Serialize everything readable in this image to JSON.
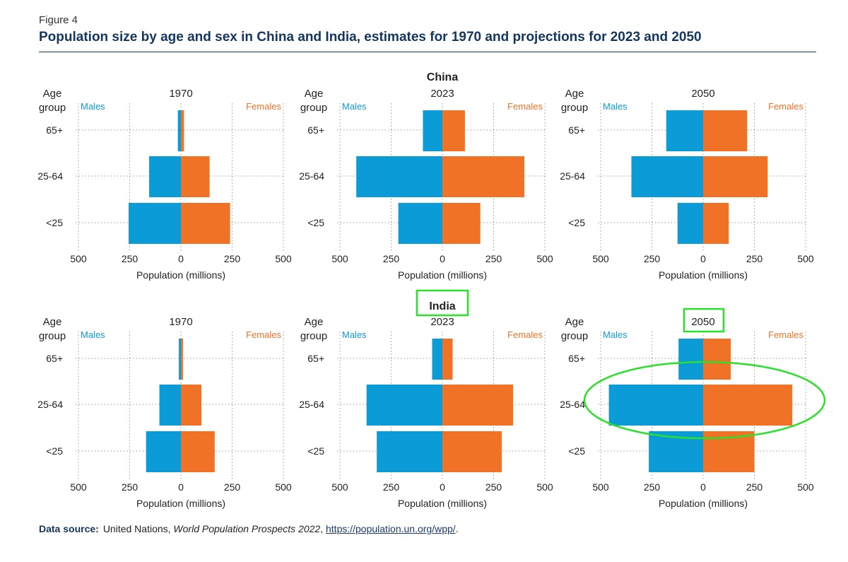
{
  "figure_label": "Figure 4",
  "title": "Population size by age and sex in China and India, estimates for 1970 and projections for 2023 and 2050",
  "colors": {
    "males": "#0b9bd7",
    "females": "#f07226",
    "title": "#14365d",
    "highlight": "#2be02b"
  },
  "source": {
    "label": "Data source:",
    "org": "United Nations, ",
    "publication": "World Population Prospects 2022",
    "separator": ", ",
    "link": "https://population.un.org/wpp/",
    "end": "."
  },
  "chart_data": [
    {
      "type": "bar",
      "country": "China",
      "year": "1970",
      "age_title": [
        "Age",
        "group"
      ],
      "categories": [
        "65+",
        "25-64",
        "<25"
      ],
      "males_label": "Males",
      "females_label": "Females",
      "series": [
        {
          "name": "Males",
          "values": [
            15,
            155,
            255
          ]
        },
        {
          "name": "Females",
          "values": [
            15,
            140,
            240
          ]
        }
      ],
      "xlabel": "Population (millions)",
      "xticks": [
        "500",
        "250",
        "0",
        "250",
        "500"
      ],
      "xlim": [
        -500,
        500
      ]
    },
    {
      "type": "bar",
      "country": "China",
      "year": "2023",
      "age_title": [
        "Age",
        "group"
      ],
      "categories": [
        "65+",
        "25-64",
        "<25"
      ],
      "males_label": "Males",
      "females_label": "Females",
      "series": [
        {
          "name": "Males",
          "values": [
            95,
            420,
            215
          ]
        },
        {
          "name": "Females",
          "values": [
            110,
            400,
            185
          ]
        }
      ],
      "xlabel": "Population (millions)",
      "xticks": [
        "500",
        "250",
        "0",
        "250",
        "500"
      ],
      "xlim": [
        -500,
        500
      ]
    },
    {
      "type": "bar",
      "country": "China",
      "year": "2050",
      "age_title": [
        "Age",
        "group"
      ],
      "categories": [
        "65+",
        "25-64",
        "<25"
      ],
      "males_label": "Males",
      "females_label": "Females",
      "series": [
        {
          "name": "Males",
          "values": [
            180,
            350,
            125
          ]
        },
        {
          "name": "Females",
          "values": [
            215,
            315,
            125
          ]
        }
      ],
      "xlabel": "Population (millions)",
      "xticks": [
        "500",
        "250",
        "0",
        "250",
        "500"
      ],
      "xlim": [
        -500,
        500
      ]
    },
    {
      "type": "bar",
      "country": "India",
      "year": "1970",
      "age_title": [
        "Age",
        "group"
      ],
      "categories": [
        "65+",
        "25-64",
        "<25"
      ],
      "males_label": "Males",
      "females_label": "Females",
      "series": [
        {
          "name": "Males",
          "values": [
            10,
            105,
            170
          ]
        },
        {
          "name": "Females",
          "values": [
            10,
            100,
            165
          ]
        }
      ],
      "xlabel": "Population (millions)",
      "xticks": [
        "500",
        "250",
        "0",
        "250",
        "500"
      ],
      "xlim": [
        -500,
        500
      ]
    },
    {
      "type": "bar",
      "country": "India",
      "year": "2023",
      "age_title": [
        "Age",
        "group"
      ],
      "categories": [
        "65+",
        "25-64",
        "<25"
      ],
      "males_label": "Males",
      "females_label": "Females",
      "series": [
        {
          "name": "Males",
          "values": [
            50,
            370,
            320
          ]
        },
        {
          "name": "Females",
          "values": [
            50,
            345,
            290
          ]
        }
      ],
      "xlabel": "Population (millions)",
      "xticks": [
        "500",
        "250",
        "0",
        "250",
        "500"
      ],
      "xlim": [
        -500,
        500
      ]
    },
    {
      "type": "bar",
      "country": "India",
      "year": "2050",
      "age_title": [
        "Age",
        "group"
      ],
      "categories": [
        "65+",
        "25-64",
        "<25"
      ],
      "males_label": "Males",
      "females_label": "Females",
      "series": [
        {
          "name": "Males",
          "values": [
            120,
            460,
            265
          ]
        },
        {
          "name": "Females",
          "values": [
            135,
            435,
            250
          ]
        }
      ],
      "xlabel": "Population (millions)",
      "xticks": [
        "500",
        "250",
        "0",
        "250",
        "500"
      ],
      "xlim": [
        -500,
        500
      ]
    }
  ],
  "annotations": [
    {
      "kind": "rectangle",
      "target": "India"
    },
    {
      "kind": "rectangle",
      "target": "India 2050 panel title"
    },
    {
      "kind": "ellipse",
      "target": "India 2050 25-64 bars"
    }
  ]
}
